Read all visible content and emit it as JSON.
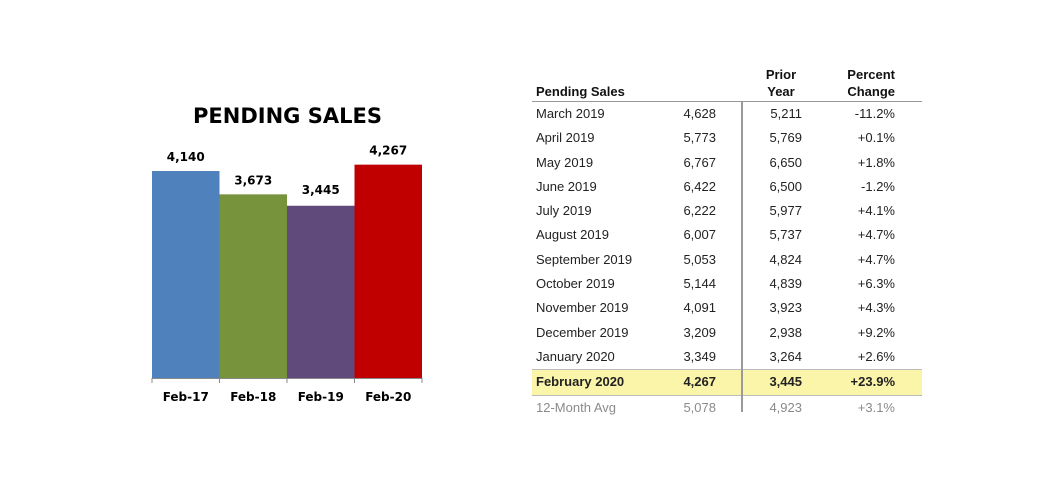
{
  "chart_data": {
    "type": "bar",
    "title": "PENDING SALES",
    "categories": [
      "Feb-17",
      "Feb-18",
      "Feb-19",
      "Feb-20"
    ],
    "values": [
      4140,
      3673,
      3445,
      4267
    ],
    "value_labels": [
      "4,140",
      "3,673",
      "3,445",
      "4,267"
    ],
    "colors": [
      "#4f81bd",
      "#77933c",
      "#604a7b",
      "#c00000"
    ],
    "xlabel": "",
    "ylabel": "",
    "grid": false
  },
  "table": {
    "headers": {
      "label": "Pending Sales",
      "prior": "Prior\nYear",
      "percent": "Percent\nChange"
    },
    "rows": [
      {
        "label": "March 2019",
        "value": "4,628",
        "prior": "5,211",
        "pct": "-11.2%"
      },
      {
        "label": "April 2019",
        "value": "5,773",
        "prior": "5,769",
        "pct": "+0.1%"
      },
      {
        "label": "May 2019",
        "value": "6,767",
        "prior": "6,650",
        "pct": "+1.8%"
      },
      {
        "label": "June 2019",
        "value": "6,422",
        "prior": "6,500",
        "pct": "-1.2%"
      },
      {
        "label": "July 2019",
        "value": "6,222",
        "prior": "5,977",
        "pct": "+4.1%"
      },
      {
        "label": "August 2019",
        "value": "6,007",
        "prior": "5,737",
        "pct": "+4.7%"
      },
      {
        "label": "September 2019",
        "value": "5,053",
        "prior": "4,824",
        "pct": "+4.7%"
      },
      {
        "label": "October 2019",
        "value": "5,144",
        "prior": "4,839",
        "pct": "+6.3%"
      },
      {
        "label": "November 2019",
        "value": "4,091",
        "prior": "3,923",
        "pct": "+4.3%"
      },
      {
        "label": "December 2019",
        "value": "3,209",
        "prior": "2,938",
        "pct": "+9.2%"
      },
      {
        "label": "January 2020",
        "value": "3,349",
        "prior": "3,264",
        "pct": "+2.6%"
      },
      {
        "label": "February 2020",
        "value": "4,267",
        "prior": "3,445",
        "pct": "+23.9%",
        "highlight": true
      }
    ],
    "average": {
      "label": "12-Month Avg",
      "value": "5,078",
      "prior": "4,923",
      "pct": "+3.1%"
    }
  }
}
